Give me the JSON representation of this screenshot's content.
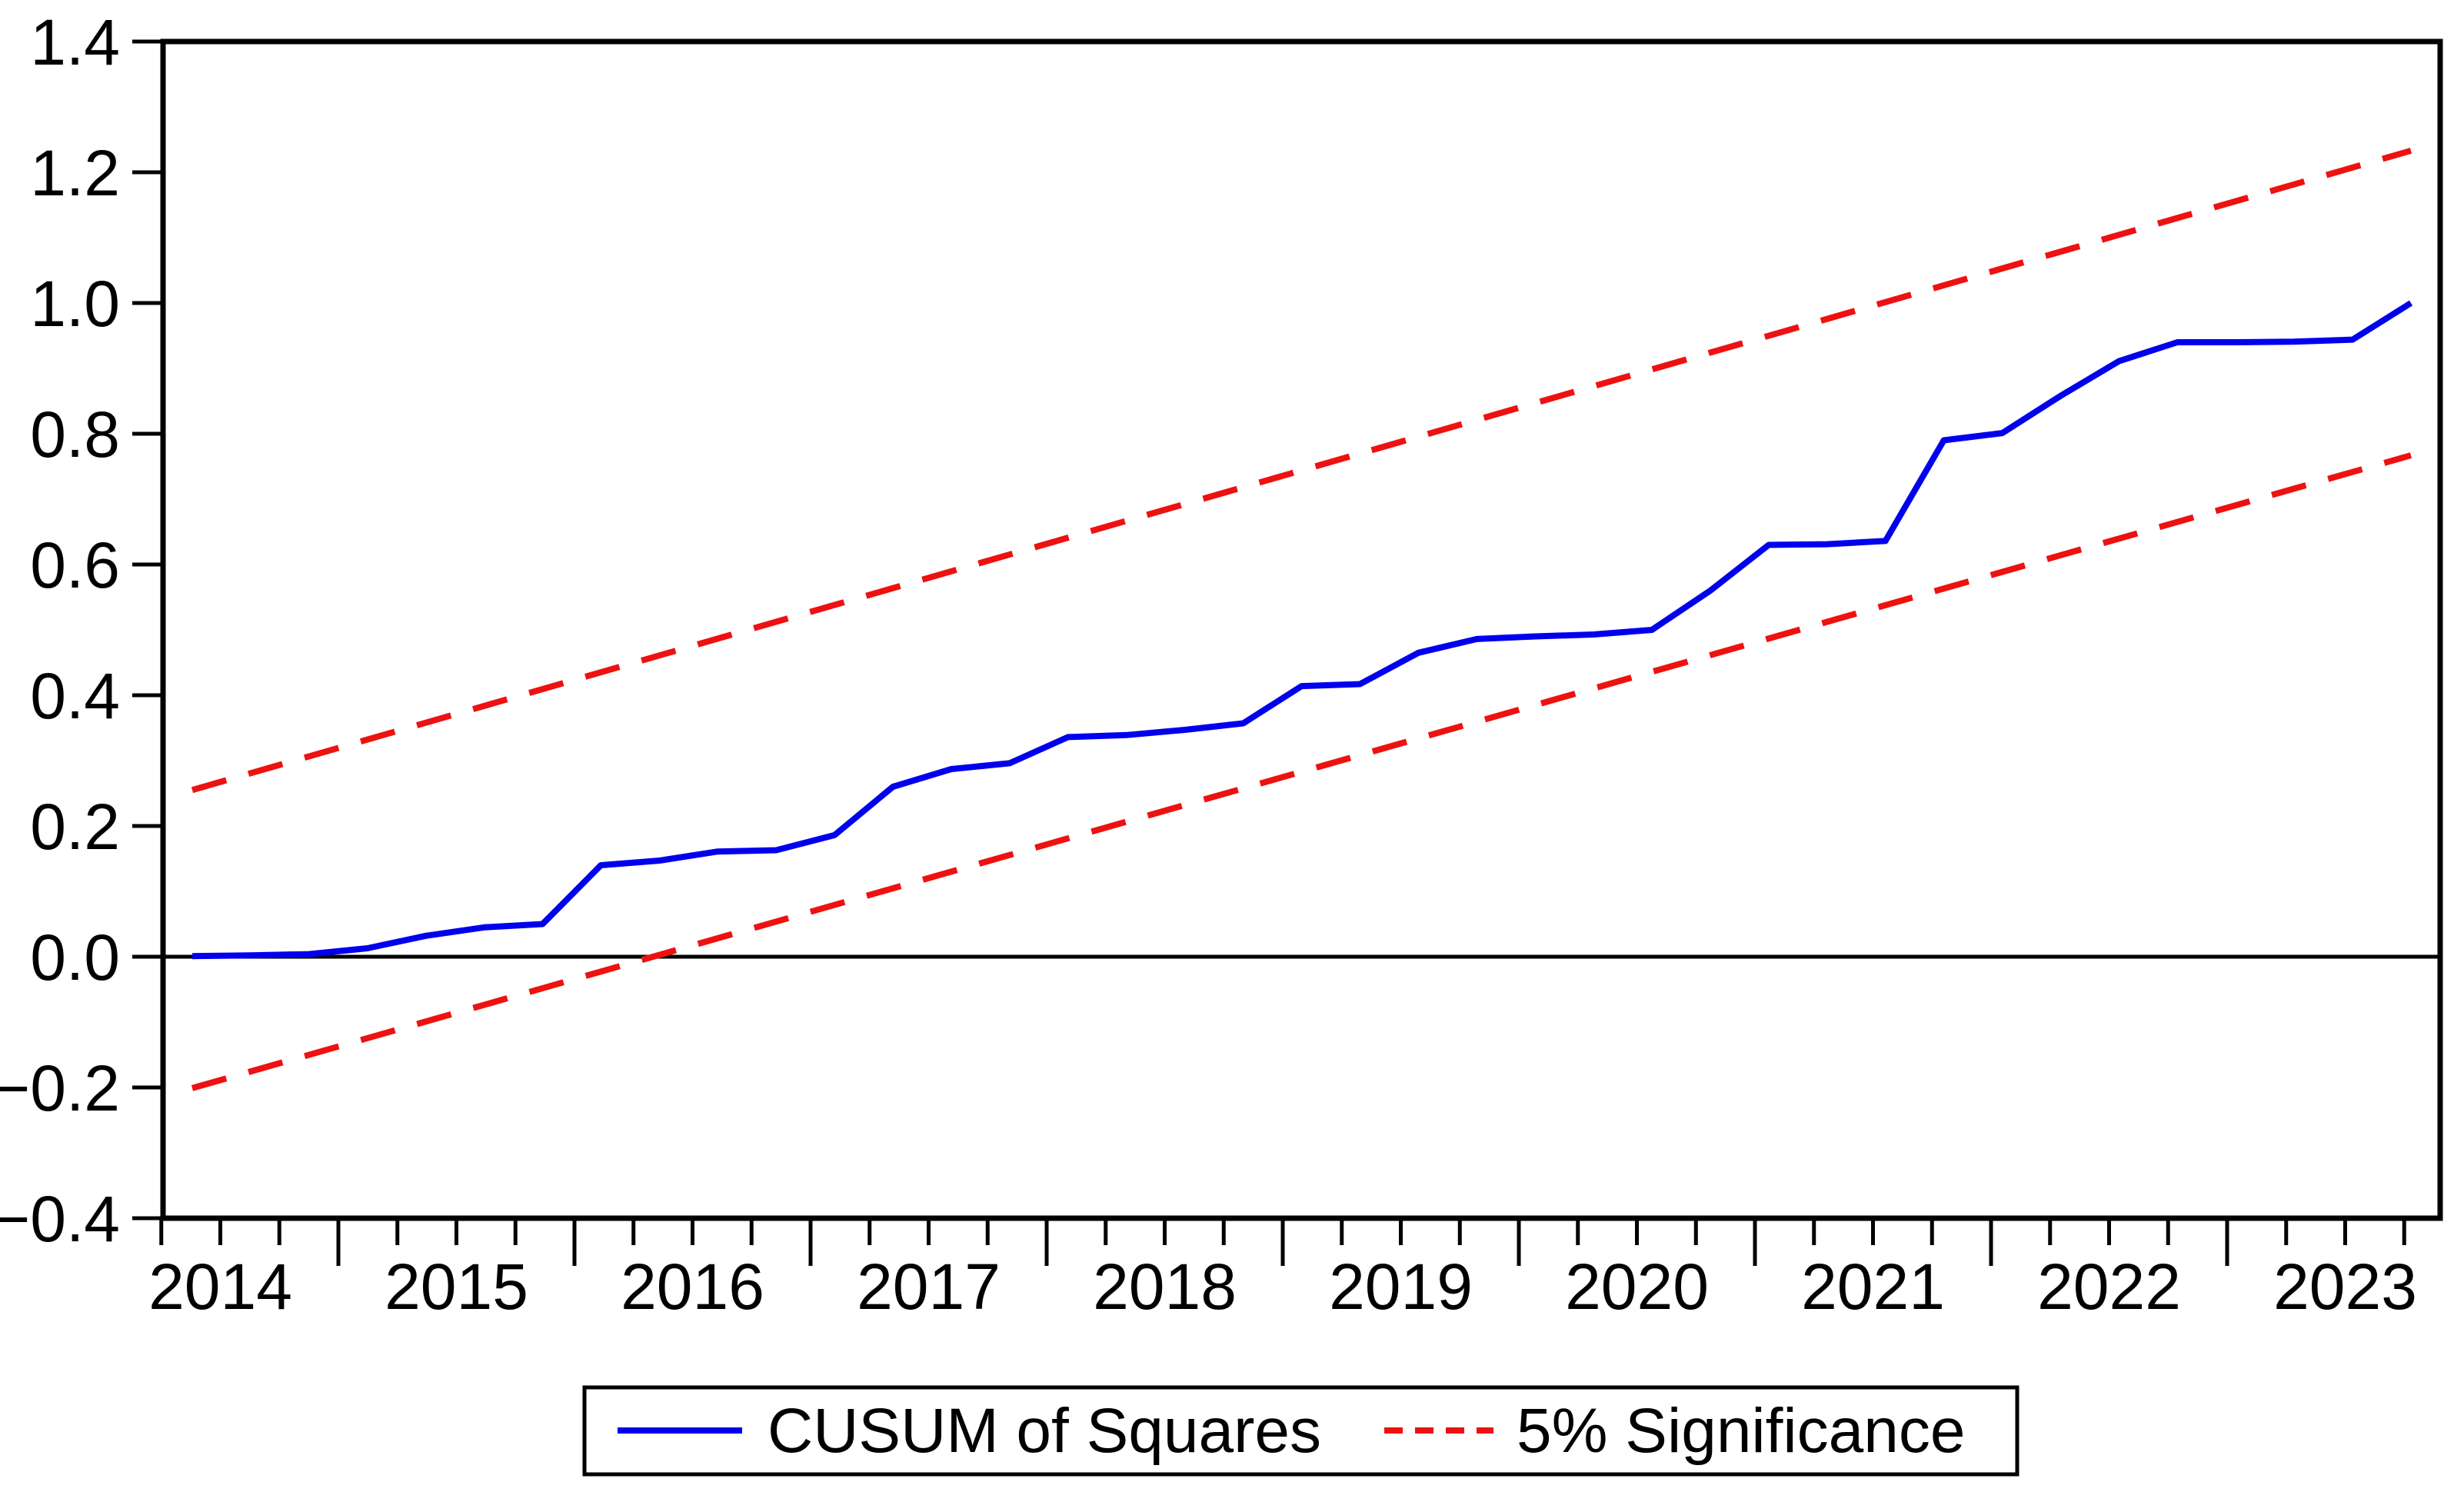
{
  "figure": {
    "background_color": "#ffffff",
    "text_color": "#000000"
  },
  "legend": {
    "items": [
      {
        "label": "CUSUM of Squares",
        "style": "solid",
        "color": "#0000ee"
      },
      {
        "label": "5% Significance",
        "style": "dashed",
        "color": "#ee1111"
      }
    ],
    "position": "bottom",
    "border": true
  },
  "chart_data": {
    "type": "line",
    "title": "",
    "xlabel": "",
    "ylabel": "",
    "grid": "off",
    "legend_position": "bottom",
    "ylim": [
      -0.4,
      1.4
    ],
    "y_ticks": [
      1.4,
      1.2,
      1.0,
      0.8,
      0.6,
      0.4,
      0.2,
      0.0,
      -0.2,
      -0.4
    ],
    "y_tick_labels": [
      "1.4",
      "1.2",
      "1.0",
      "0.8",
      "0.6",
      "0.4",
      "0.2",
      "0.0",
      "−0.2",
      "−0.4"
    ],
    "x_tick_labels": [
      "2014",
      "2015",
      "2016",
      "2017",
      "2018",
      "2019",
      "2020",
      "2021",
      "2022",
      "2023"
    ],
    "x_minor_tick_unit": "quarter",
    "categories": [
      "2014Q2",
      "2014Q3",
      "2014Q4",
      "2015Q1",
      "2015Q2",
      "2015Q3",
      "2015Q4",
      "2016Q1",
      "2016Q2",
      "2016Q3",
      "2016Q4",
      "2017Q1",
      "2017Q2",
      "2017Q3",
      "2017Q4",
      "2018Q1",
      "2018Q2",
      "2018Q3",
      "2018Q4",
      "2019Q1",
      "2019Q2",
      "2019Q3",
      "2019Q4",
      "2020Q1",
      "2020Q2",
      "2020Q3",
      "2020Q4",
      "2021Q1",
      "2021Q2",
      "2021Q3",
      "2021Q4",
      "2022Q1",
      "2022Q2",
      "2022Q3",
      "2022Q4",
      "2023Q1",
      "2023Q2",
      "2023Q3",
      "2023Q4"
    ],
    "series": [
      {
        "name": "CUSUM of Squares",
        "color": "#0000ee",
        "style": "solid",
        "values": [
          0.001,
          0.002,
          0.004,
          0.013,
          0.032,
          0.045,
          0.05,
          0.14,
          0.147,
          0.161,
          0.163,
          0.186,
          0.26,
          0.287,
          0.296,
          0.336,
          0.339,
          0.347,
          0.357,
          0.414,
          0.417,
          0.465,
          0.486,
          0.49,
          0.493,
          0.5,
          0.56,
          0.63,
          0.631,
          0.636,
          0.79,
          0.801,
          0.858,
          0.911,
          0.94,
          0.94,
          0.941,
          0.944,
          1.0
        ]
      }
    ],
    "significance_bounds": {
      "level": "5%",
      "color": "#ee1111",
      "style": "dashed",
      "upper": {
        "start": 0.255,
        "end": 1.233
      },
      "lower": {
        "start": -0.201,
        "end": 0.767
      }
    },
    "zero_line": 0.0
  }
}
